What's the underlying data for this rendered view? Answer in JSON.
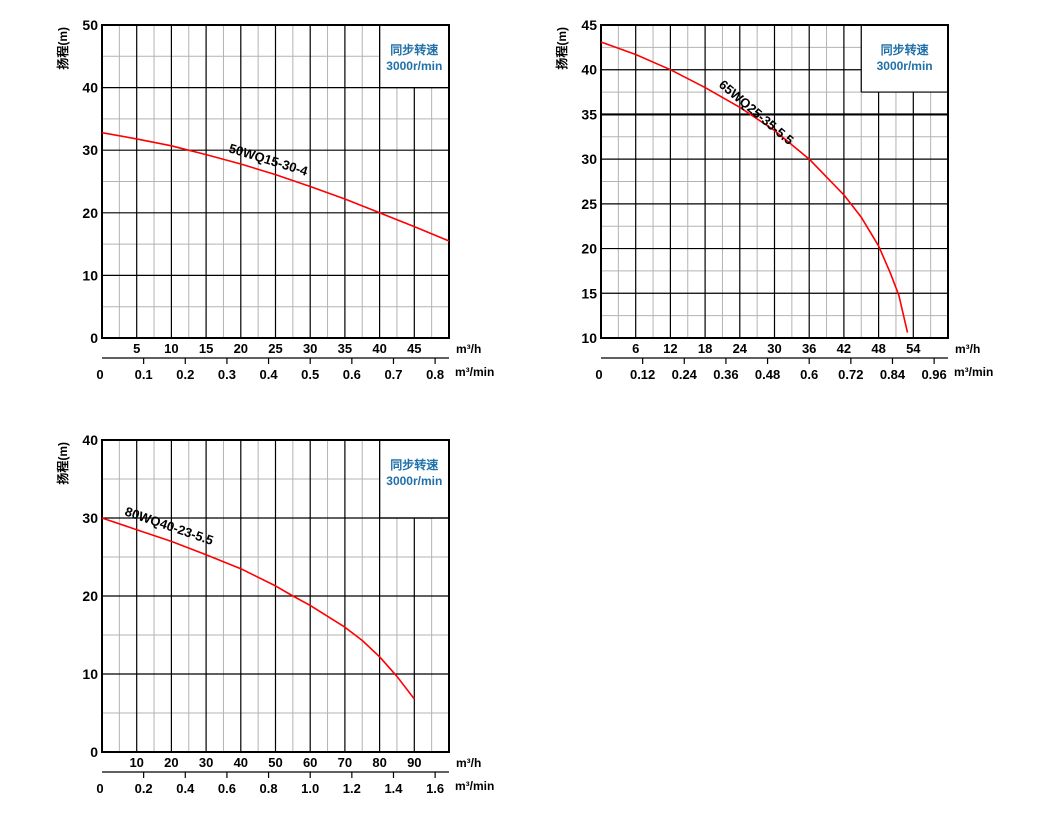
{
  "colors": {
    "curve": "#ff0000",
    "major_grid": "#000000",
    "minor_grid": "#b3b3b3",
    "legend_text": "#1f6fa8"
  },
  "chart_data": [
    {
      "type": "line",
      "ylabel": "扬程(m)",
      "xunit": "m³/h",
      "x2unit": "m³/min",
      "legend": {
        "line1": "同步转速",
        "line2": "3000r/min",
        "placement": "top-right",
        "x_from": 40,
        "y_from": 40
      },
      "xlim": [
        0,
        50
      ],
      "ylim": [
        0,
        50
      ],
      "xmajor": 5,
      "ymajor": 10,
      "xticks": [
        "5",
        "10",
        "15",
        "20",
        "25",
        "30",
        "35",
        "40",
        "45"
      ],
      "yticks": [
        "0",
        "10",
        "20",
        "30",
        "40",
        "50"
      ],
      "x2ticks": [
        "0",
        "0.1",
        "0.2",
        "0.3",
        "0.4",
        "0.5",
        "0.6",
        "0.7",
        "0.8"
      ],
      "series": [
        {
          "name": "50WQ15-30-4",
          "x": [
            0,
            5,
            10,
            15,
            20,
            25,
            30,
            35,
            40,
            45,
            50
          ],
          "y": [
            32.8,
            31.8,
            30.7,
            29.3,
            27.8,
            26.1,
            24.2,
            22.2,
            20,
            17.8,
            15.5
          ]
        }
      ]
    },
    {
      "type": "line",
      "ylabel": "扬程(m)",
      "xunit": "m³/h",
      "x2unit": "m³/min",
      "legend": {
        "line1": "同步转速",
        "line2": "3000r/min",
        "placement": "top-right",
        "x_from": 45,
        "y_from": 37.5
      },
      "xlim": [
        0,
        60
      ],
      "ylim": [
        10,
        45
      ],
      "xmajor": 6,
      "ymajor": 5,
      "xticks": [
        "6",
        "12",
        "18",
        "24",
        "30",
        "36",
        "42",
        "48",
        "54"
      ],
      "yticks": [
        "10",
        "15",
        "20",
        "25",
        "30",
        "35",
        "40",
        "45"
      ],
      "x2ticks": [
        "0",
        "0.12",
        "0.24",
        "0.36",
        "0.48",
        "0.6",
        "0.72",
        "0.84",
        "0.96"
      ],
      "series": [
        {
          "name": "65WQ25-35-5.5",
          "x": [
            0,
            6,
            12,
            18,
            24,
            30,
            36,
            42,
            45,
            48,
            50,
            51.5,
            53
          ],
          "y": [
            43.1,
            41.7,
            40,
            38,
            35.8,
            33.2,
            30,
            26,
            23.5,
            20.3,
            17.3,
            14.8,
            10.6
          ]
        }
      ]
    },
    {
      "type": "line",
      "ylabel": "扬程(m)",
      "xunit": "m³/h",
      "x2unit": "m³/min",
      "legend": {
        "line1": "同步转速",
        "line2": "3000r/min",
        "placement": "top-right",
        "x_from": 80,
        "y_from": 30
      },
      "xlim": [
        0,
        100
      ],
      "ylim": [
        0,
        40
      ],
      "xmajor": 10,
      "ymajor": 10,
      "xticks": [
        "10",
        "20",
        "30",
        "40",
        "50",
        "60",
        "70",
        "80",
        "90"
      ],
      "yticks": [
        "0",
        "10",
        "20",
        "30",
        "40"
      ],
      "x2ticks": [
        "0",
        "0.2",
        "0.4",
        "0.6",
        "0.8",
        "1.0",
        "1.2",
        "1.4",
        "1.6"
      ],
      "series": [
        {
          "name": "80WQ40-23-5.5",
          "x": [
            0,
            10,
            20,
            30,
            40,
            50,
            55,
            60,
            70,
            75,
            80,
            85,
            90
          ],
          "y": [
            30,
            28.5,
            27,
            25.3,
            23.5,
            21.3,
            20,
            18.8,
            16,
            14.3,
            12.2,
            9.7,
            6.8
          ]
        }
      ]
    }
  ]
}
